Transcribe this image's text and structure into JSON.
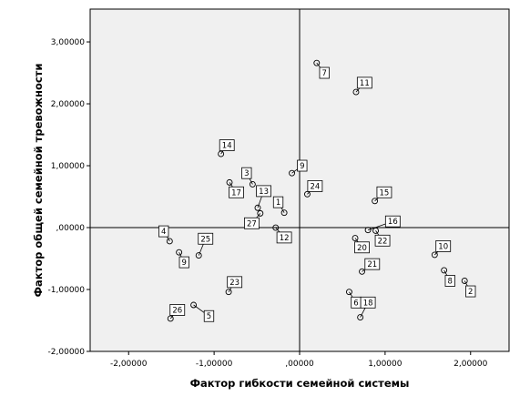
{
  "chart_data": {
    "type": "scatter",
    "xlabel": "Фактор гибкости семейной системы",
    "ylabel": "Фактор общей семейной тревожности",
    "xlim": [
      -2.45,
      2.45
    ],
    "ylim": [
      -2.0,
      3.53
    ],
    "x_ticks": [
      {
        "value": -2,
        "label": "-2,00000"
      },
      {
        "value": -1,
        "label": "-1,00000"
      },
      {
        "value": 0,
        "label": ",00000"
      },
      {
        "value": 1,
        "label": "1,00000"
      },
      {
        "value": 2,
        "label": "2,00000"
      }
    ],
    "y_ticks": [
      {
        "value": -2,
        "label": "-2,00000"
      },
      {
        "value": -1,
        "label": "-1,00000"
      },
      {
        "value": 0,
        "label": ",00000"
      },
      {
        "value": 1,
        "label": "1,00000"
      },
      {
        "value": 2,
        "label": "2,00000"
      },
      {
        "value": 3,
        "label": "3,00000"
      }
    ],
    "reference_lines": {
      "x": 0,
      "y": 0
    },
    "grid": false,
    "plot_background": "#f0f0f0",
    "points": [
      {
        "label": "1",
        "x": -0.18,
        "y": 0.24,
        "lx": -0.25,
        "ly": 0.41
      },
      {
        "label": "2",
        "x": 1.93,
        "y": -0.86,
        "lx": 2.0,
        "ly": -1.03
      },
      {
        "label": "3",
        "x": -0.55,
        "y": 0.7,
        "lx": -0.62,
        "ly": 0.88
      },
      {
        "label": "4",
        "x": -1.52,
        "y": -0.22,
        "lx": -1.59,
        "ly": -0.06
      },
      {
        "label": "5",
        "x": -1.24,
        "y": -1.25,
        "lx": -1.06,
        "ly": -1.43
      },
      {
        "label": "6",
        "x": 0.58,
        "y": -1.04,
        "lx": 0.66,
        "ly": -1.21
      },
      {
        "label": "7",
        "x": 0.2,
        "y": 2.66,
        "lx": 0.29,
        "ly": 2.5
      },
      {
        "label": "8",
        "x": 1.69,
        "y": -0.69,
        "lx": 1.76,
        "ly": -0.86
      },
      {
        "label": "9",
        "x": -1.41,
        "y": -0.4,
        "lx": -1.35,
        "ly": -0.56
      },
      {
        "label": "9",
        "x": -0.09,
        "y": 0.88,
        "lx": 0.03,
        "ly": 1.0
      },
      {
        "label": "10",
        "x": 1.58,
        "y": -0.44,
        "lx": 1.68,
        "ly": -0.3
      },
      {
        "label": "11",
        "x": 0.66,
        "y": 2.19,
        "lx": 0.76,
        "ly": 2.34
      },
      {
        "label": "12",
        "x": -0.28,
        "y": 0.0,
        "lx": -0.18,
        "ly": -0.16
      },
      {
        "label": "13",
        "x": -0.49,
        "y": 0.32,
        "lx": -0.42,
        "ly": 0.59
      },
      {
        "label": "14",
        "x": -0.92,
        "y": 1.19,
        "lx": -0.85,
        "ly": 1.33
      },
      {
        "label": "15",
        "x": 0.88,
        "y": 0.43,
        "lx": 0.99,
        "ly": 0.57
      },
      {
        "label": "16",
        "x": 0.8,
        "y": -0.04,
        "lx": 1.09,
        "ly": 0.1
      },
      {
        "label": "17",
        "x": -0.82,
        "y": 0.73,
        "lx": -0.74,
        "ly": 0.57
      },
      {
        "label": "18",
        "x": 0.71,
        "y": -1.45,
        "lx": 0.8,
        "ly": -1.21
      },
      {
        "label": "20",
        "x": 0.65,
        "y": -0.17,
        "lx": 0.73,
        "ly": -0.32
      },
      {
        "label": "21",
        "x": 0.73,
        "y": -0.71,
        "lx": 0.85,
        "ly": -0.59
      },
      {
        "label": "22",
        "x": 0.89,
        "y": -0.05,
        "lx": 0.97,
        "ly": -0.21
      },
      {
        "label": "23",
        "x": -0.83,
        "y": -1.04,
        "lx": -0.76,
        "ly": -0.88
      },
      {
        "label": "24",
        "x": 0.09,
        "y": 0.54,
        "lx": 0.18,
        "ly": 0.67
      },
      {
        "label": "25",
        "x": -1.18,
        "y": -0.45,
        "lx": -1.1,
        "ly": -0.18
      },
      {
        "label": "26",
        "x": -1.51,
        "y": -1.47,
        "lx": -1.43,
        "ly": -1.33
      },
      {
        "label": "27",
        "x": -0.46,
        "y": 0.23,
        "lx": -0.56,
        "ly": 0.07
      }
    ]
  }
}
